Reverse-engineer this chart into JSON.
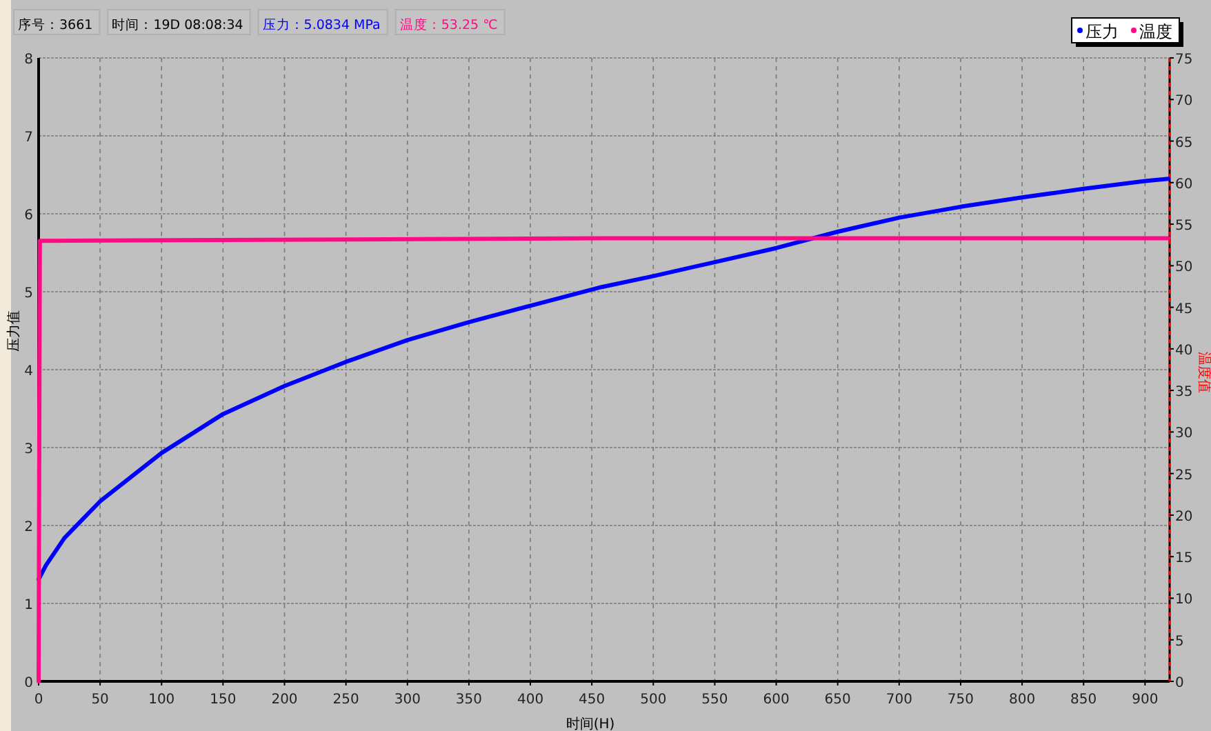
{
  "chart_data": {
    "type": "line",
    "annotations": [
      "序号：3661",
      "时间：19D 08:08:34",
      "压力：5.0834 MPa",
      "温度：53.25 ℃"
    ],
    "xlabel": "时间(H)",
    "ylabel": "压力值",
    "y2label": "温度值",
    "xlim": [
      0,
      920
    ],
    "xticks": [
      0,
      50,
      100,
      150,
      200,
      250,
      300,
      350,
      400,
      450,
      500,
      550,
      600,
      650,
      700,
      750,
      800,
      850,
      900
    ],
    "ylim": [
      0,
      8
    ],
    "yticks": [
      0,
      1,
      2,
      3,
      4,
      5,
      6,
      7,
      8
    ],
    "y2lim": [
      0,
      75
    ],
    "y2ticks": [
      0,
      5,
      10,
      15,
      20,
      25,
      30,
      35,
      40,
      45,
      50,
      55,
      60,
      65,
      70,
      75
    ],
    "grid": true,
    "legend": "top right",
    "marker": "none",
    "line_style": "solid",
    "series": [
      {
        "name": "压力",
        "color": "#0000ff",
        "x": [
          0,
          6,
          21,
          50,
          100,
          150,
          200,
          250,
          300,
          350,
          400,
          458,
          500,
          550,
          600,
          650,
          700,
          750,
          800,
          850,
          900,
          919
        ],
        "values": [
          1.31,
          1.49,
          1.84,
          2.31,
          2.93,
          3.43,
          3.79,
          4.1,
          4.38,
          4.61,
          4.82,
          5.06,
          5.2,
          5.38,
          5.56,
          5.77,
          5.95,
          6.09,
          6.21,
          6.32,
          6.42,
          6.45
        ]
      },
      {
        "name": "温度",
        "color": "#ff0a82",
        "axis": "y2",
        "x": [
          0,
          1,
          460,
          919
        ],
        "values": [
          0,
          53,
          53.3,
          53.3
        ]
      }
    ]
  }
}
